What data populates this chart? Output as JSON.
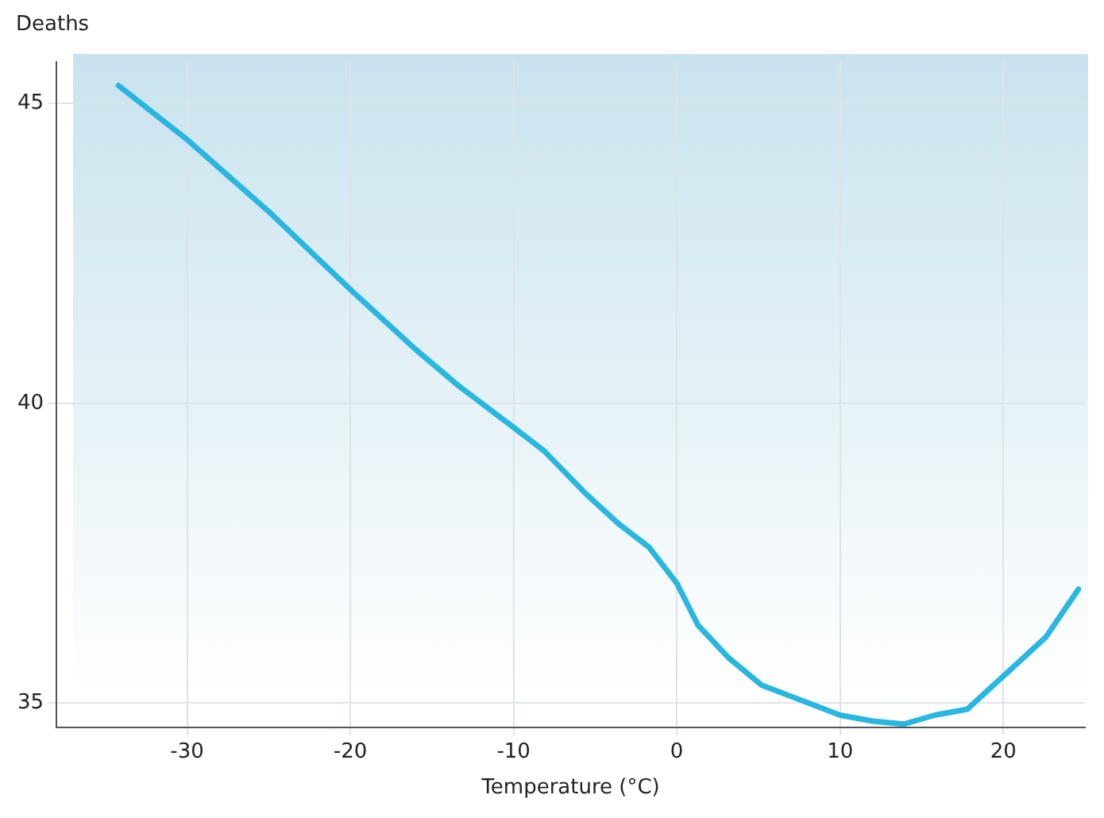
{
  "chart_data": {
    "type": "line",
    "xlabel": "Temperature (°C)",
    "ylabel": "Deaths",
    "xlim": [
      -38,
      25
    ],
    "xticks": [
      -30,
      -20,
      -10,
      0,
      10,
      20
    ],
    "ylim": [
      34.6,
      45.7
    ],
    "yticks": [
      35,
      40,
      45
    ],
    "grid": true,
    "legend": false,
    "marker": "none",
    "line_style": "solid",
    "series": [
      {
        "color": "#29b6e0",
        "x": [
          -34.2,
          -30,
          -25,
          -20,
          -16,
          -13.4,
          -10,
          -8.1,
          -5.6,
          -3.6,
          -1.7,
          0,
          1.3,
          3.2,
          5.2,
          8.1,
          10,
          12,
          13.9,
          15.8,
          17.8,
          20,
          22.6,
          24.6
        ],
        "values": [
          45.3,
          44.4,
          43.2,
          41.9,
          40.9,
          40.3,
          39.6,
          39.2,
          38.5,
          38.0,
          37.6,
          37.0,
          36.3,
          35.75,
          35.3,
          35.0,
          34.8,
          34.7,
          34.65,
          34.8,
          34.9,
          35.45,
          36.1,
          36.9
        ]
      }
    ]
  }
}
